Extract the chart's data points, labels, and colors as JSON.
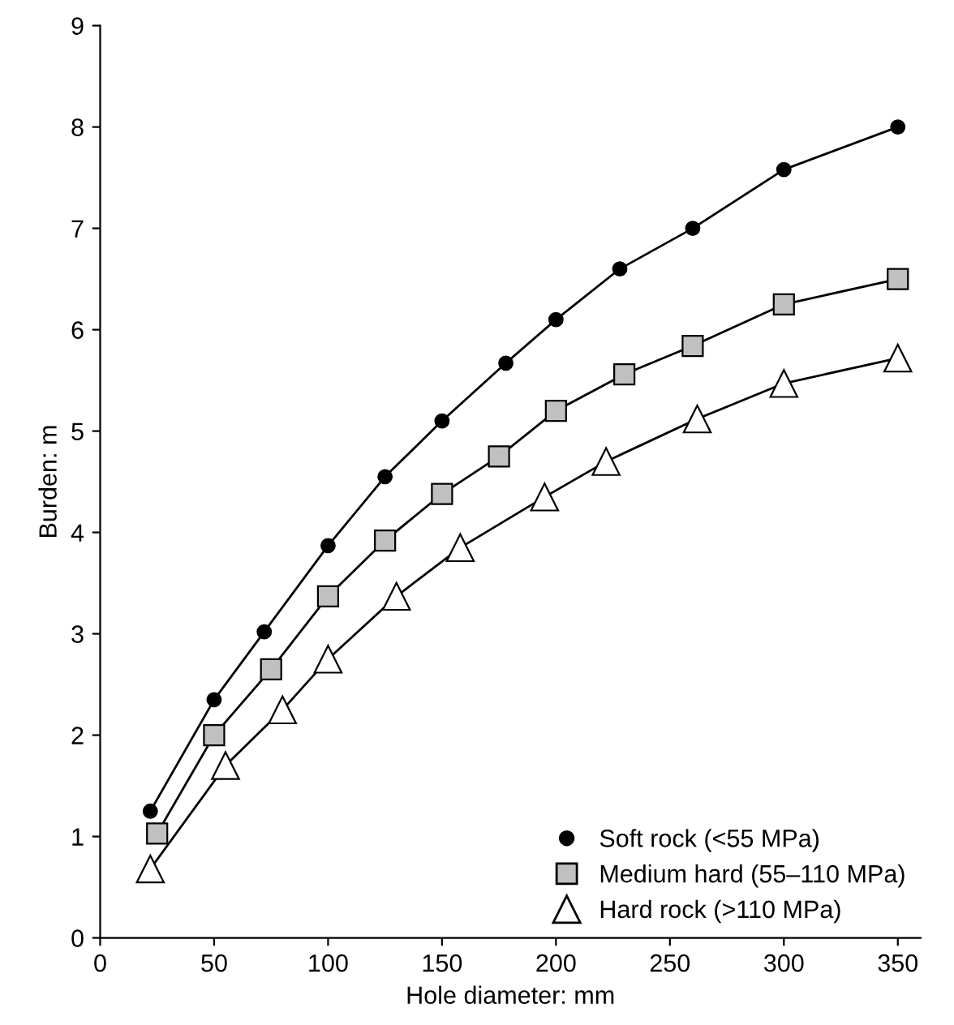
{
  "chart_data": {
    "type": "line",
    "xlabel": "Hole diameter: mm",
    "ylabel": "Burden: m",
    "xlim": [
      0,
      360
    ],
    "ylim": [
      0,
      9
    ],
    "xticks": [
      0,
      50,
      100,
      150,
      200,
      250,
      300,
      350
    ],
    "yticks": [
      0,
      1,
      2,
      3,
      4,
      5,
      6,
      7,
      8,
      9
    ],
    "grid": false,
    "legend": "bottom right",
    "line_style": "solid",
    "series": [
      {
        "name": "Soft rock (<55 MPa)",
        "color": "#000000",
        "marker": "circle",
        "x": [
          22,
          50,
          72,
          100,
          125,
          150,
          178,
          200,
          228,
          260,
          300,
          350
        ],
        "values": [
          1.25,
          2.35,
          3.02,
          3.87,
          4.55,
          5.1,
          5.67,
          6.1,
          6.6,
          7.0,
          7.58,
          8.0
        ]
      },
      {
        "name": "Medium hard (55–110 MPa)",
        "color": "#c0c0c0",
        "marker": "square",
        "x": [
          25,
          50,
          75,
          100,
          125,
          150,
          175,
          200,
          230,
          260,
          300,
          350
        ],
        "values": [
          1.03,
          2.0,
          2.65,
          3.37,
          3.92,
          4.38,
          4.75,
          5.2,
          5.56,
          5.84,
          6.25,
          6.5
        ]
      },
      {
        "name": "Hard rock (>110 MPa)",
        "color": "#ffffff",
        "marker": "triangle",
        "x": [
          22,
          55,
          80,
          100,
          130,
          158,
          195,
          222,
          262,
          300,
          350
        ],
        "values": [
          0.68,
          1.7,
          2.25,
          2.75,
          3.37,
          3.85,
          4.35,
          4.7,
          5.12,
          5.47,
          5.72
        ]
      }
    ]
  }
}
